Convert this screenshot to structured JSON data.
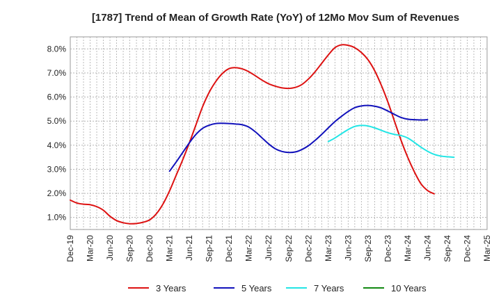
{
  "chart_data": {
    "type": "line",
    "title": "[1787]  Trend of Mean of Growth Rate (YoY) of 12Mo Mov Sum of Revenues",
    "xlabel": "",
    "ylabel": "",
    "grid": true,
    "legend_position": "bottom",
    "ylim": [
      0.5,
      8.5
    ],
    "y_ticks": [
      1.0,
      2.0,
      3.0,
      4.0,
      5.0,
      6.0,
      7.0,
      8.0
    ],
    "y_tick_labels": [
      "1.0%",
      "2.0%",
      "3.0%",
      "4.0%",
      "5.0%",
      "6.0%",
      "7.0%",
      "8.0%"
    ],
    "x_tick_labels": [
      "Dec-19",
      "Mar-20",
      "Jun-20",
      "Sep-20",
      "Dec-20",
      "Mar-21",
      "Jun-21",
      "Sep-21",
      "Dec-21",
      "Mar-22",
      "Jun-22",
      "Sep-22",
      "Dec-22",
      "Mar-23",
      "Jun-23",
      "Sep-23",
      "Dec-23",
      "Mar-24",
      "Jun-24",
      "Sep-24",
      "Dec-24",
      "Mar-25"
    ],
    "x_index_range": [
      0,
      63
    ],
    "series": [
      {
        "name": "3 Years",
        "color": "#dd1111",
        "start_index": 0,
        "values": [
          1.72,
          1.6,
          1.55,
          1.53,
          1.45,
          1.3,
          1.05,
          0.87,
          0.78,
          0.74,
          0.75,
          0.8,
          0.9,
          1.15,
          1.55,
          2.1,
          2.75,
          3.4,
          4.1,
          4.85,
          5.6,
          6.2,
          6.65,
          6.98,
          7.18,
          7.22,
          7.17,
          7.05,
          6.88,
          6.7,
          6.55,
          6.45,
          6.38,
          6.36,
          6.4,
          6.52,
          6.75,
          7.05,
          7.4,
          7.75,
          8.05,
          8.17,
          8.15,
          8.05,
          7.85,
          7.55,
          7.1,
          6.5,
          5.8,
          5.0,
          4.2,
          3.5,
          2.9,
          2.4,
          2.12,
          1.98
        ]
      },
      {
        "name": "5 Years",
        "color": "#1111bb",
        "start_index": 15,
        "values": [
          2.92,
          3.3,
          3.7,
          4.1,
          4.45,
          4.7,
          4.83,
          4.9,
          4.91,
          4.9,
          4.88,
          4.85,
          4.75,
          4.55,
          4.3,
          4.05,
          3.85,
          3.74,
          3.7,
          3.72,
          3.82,
          3.98,
          4.2,
          4.45,
          4.72,
          4.98,
          5.2,
          5.4,
          5.56,
          5.63,
          5.65,
          5.62,
          5.55,
          5.42,
          5.28,
          5.15,
          5.08,
          5.06,
          5.05,
          5.06
        ]
      },
      {
        "name": "7 Years",
        "color": "#22e5e5",
        "start_index": 39,
        "values": [
          4.15,
          4.3,
          4.48,
          4.65,
          4.78,
          4.82,
          4.8,
          4.72,
          4.62,
          4.52,
          4.45,
          4.4,
          4.3,
          4.12,
          3.92,
          3.75,
          3.62,
          3.55,
          3.52,
          3.5
        ]
      },
      {
        "name": "10 Years",
        "color": "#118811",
        "start_index": 0,
        "values": []
      }
    ]
  }
}
